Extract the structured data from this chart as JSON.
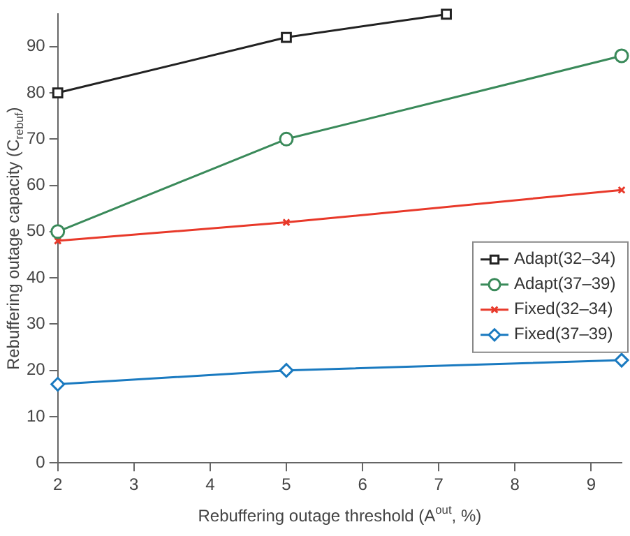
{
  "chart_data": {
    "type": "line",
    "xlabel": "Rebuffering outage threshold (A$^{out}$, %)",
    "ylabel": "Rebuffering outage capacity (C$_{rebuf}$)",
    "xlim": [
      2,
      9.4
    ],
    "xticks": [
      2,
      3,
      4,
      5,
      6,
      7,
      8,
      9
    ],
    "ylim": [
      0,
      97
    ],
    "yticks": [
      0,
      10,
      20,
      30,
      40,
      50,
      60,
      70,
      80,
      90
    ],
    "grid": false,
    "legend": "right",
    "line_style": "solid",
    "series": [
      {
        "name": "Adapt(32–34)",
        "color": "#222222",
        "marker": "square",
        "x": [
          2,
          5,
          7.1
        ],
        "values": [
          80,
          92,
          97
        ]
      },
      {
        "name": "Adapt(37–39)",
        "color": "#3a8a5a",
        "marker": "circle",
        "x": [
          2,
          5,
          9.4
        ],
        "values": [
          50,
          70,
          88
        ]
      },
      {
        "name": "Fixed(32–34)",
        "color": "#e8392a",
        "marker": "cross",
        "x": [
          2,
          5,
          9.4
        ],
        "values": [
          48,
          52,
          59
        ]
      },
      {
        "name": "Fixed(37–39)",
        "color": "#1a7ac0",
        "marker": "diamond",
        "x": [
          2,
          5,
          9.4
        ],
        "values": [
          17,
          20,
          22.2
        ]
      }
    ]
  }
}
